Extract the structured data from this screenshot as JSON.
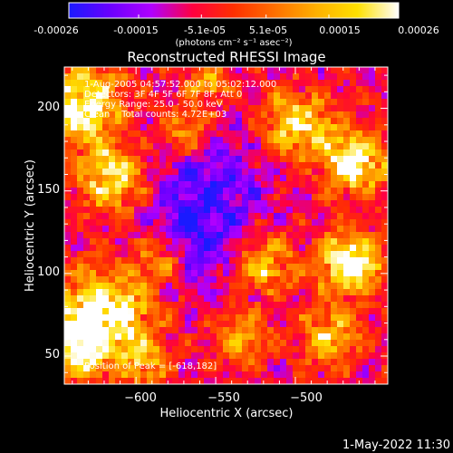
{
  "colorbar": {
    "tick_labels": [
      "-0.00026",
      "-0.00015",
      "-5.1e-05",
      "5.1e-05",
      "0.00015",
      "0.00026"
    ],
    "unit_label": "(photons cm⁻² s⁻¹ asec⁻²)",
    "colors": [
      "#1a1aff",
      "#6a00ff",
      "#b000ff",
      "#ff0040",
      "#ff3000",
      "#ff7000",
      "#ffb000",
      "#ffe000",
      "#ffffff"
    ]
  },
  "chart_data": {
    "type": "heatmap",
    "title": "Reconstructed RHESSI Image",
    "xlabel": "Heliocentric X (arcsec)",
    "ylabel": "Heliocentric Y (arcsec)",
    "xlim": [
      -645,
      -442
    ],
    "ylim": [
      33,
      225
    ],
    "x_ticks": [
      -600,
      -550,
      -500
    ],
    "y_ticks": [
      50,
      100,
      150,
      200
    ],
    "x_tick_labels": [
      "−600",
      "−550",
      "−500"
    ],
    "y_tick_labels": [
      "50",
      "100",
      "150",
      "200"
    ],
    "color_scale": {
      "min": -0.00026,
      "max": 0.00026
    },
    "annotations": [
      "1-Aug-2005 04:57:52.000 to 05:02:12.000",
      "Detectors: 3F 4F 5F 6F 7F 8F, Att 0",
      "Energy Range: 25.0 - 50.0 keV",
      "Clean    Total counts: 4.72E+03",
      "Position of Peak = [-618,182]"
    ],
    "peak_position": [
      -618,
      182
    ]
  },
  "footer": {
    "date_stamp": "1-May-2022 11:30"
  }
}
